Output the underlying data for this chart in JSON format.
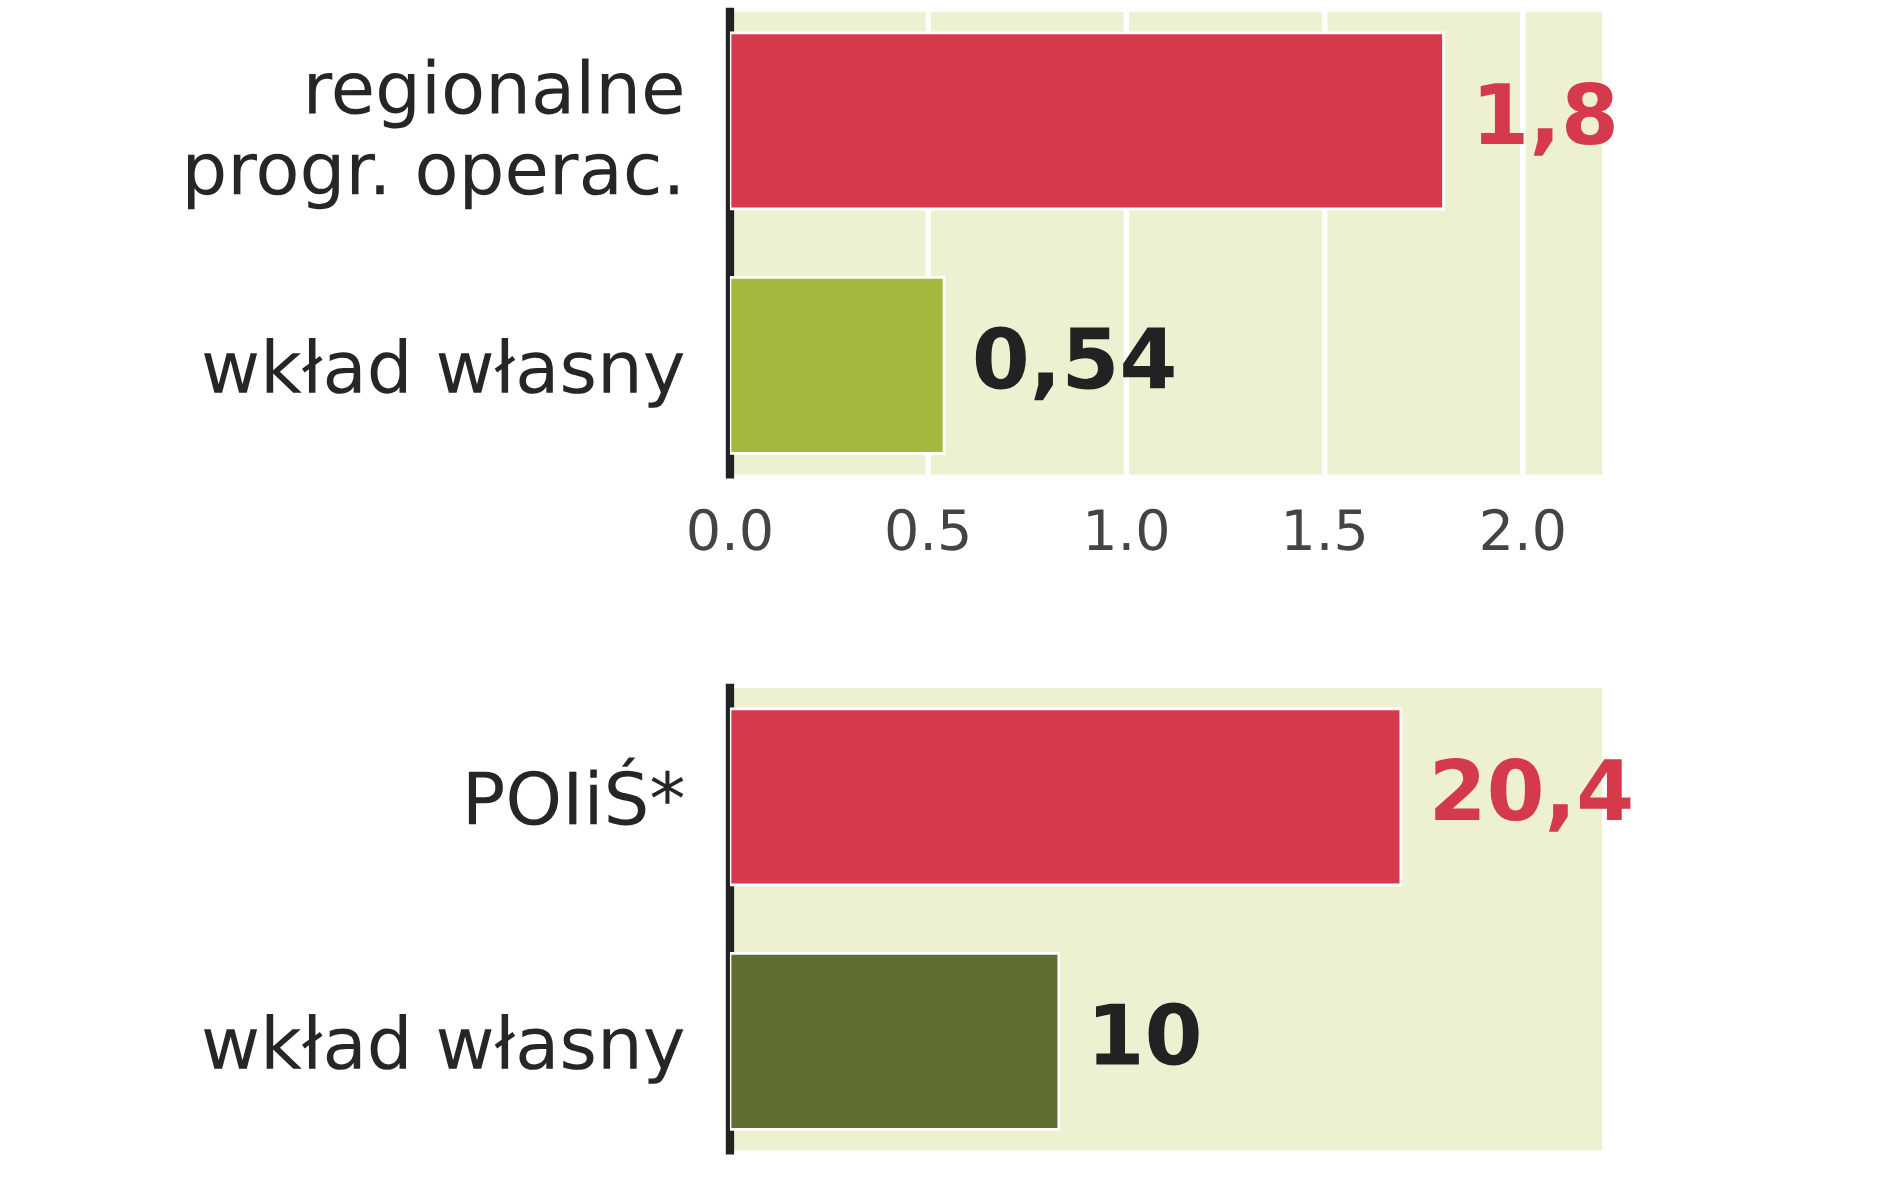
{
  "chart_data": [
    {
      "type": "bar",
      "orientation": "horizontal",
      "categories": [
        "regionalne\nprogr. operac.",
        "wkład własny"
      ],
      "values": [
        1.8,
        0.54
      ],
      "colors": [
        "#d43a4c",
        "#a3b83c"
      ],
      "value_labels": [
        "1,8",
        "0,54"
      ],
      "xlim": [
        0,
        2.2
      ],
      "xticks": [
        {
          "value": 0,
          "label": "0.0"
        },
        {
          "value": 0.5,
          "label": "0.5"
        },
        {
          "value": 1,
          "label": "1.0"
        },
        {
          "value": 1.5,
          "label": "1.5"
        },
        {
          "value": 2,
          "label": "2.0"
        }
      ],
      "grid": "x"
    },
    {
      "type": "bar",
      "orientation": "horizontal",
      "categories": [
        "POIiŚ*",
        "wkład własny"
      ],
      "values": [
        20.4,
        10
      ],
      "colors": [
        "#d43a4c",
        "#5f6d30"
      ],
      "value_labels": [
        "20,4",
        "10"
      ],
      "tick_labels": "y"
    }
  ]
}
